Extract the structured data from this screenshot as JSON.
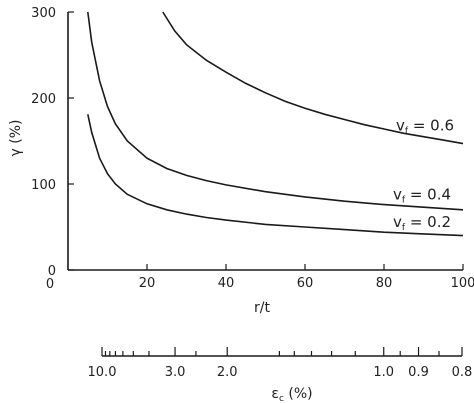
{
  "chart_data": {
    "type": "line",
    "title": "",
    "xlabel": "r/t",
    "ylabel": "γ (%)",
    "xlim": [
      0,
      100
    ],
    "ylim": [
      0,
      300
    ],
    "x_ticks": [
      20,
      40,
      60,
      80,
      100
    ],
    "y_ticks": [
      0,
      100,
      200,
      300
    ],
    "grid": false,
    "series": [
      {
        "name": "v_f = 0.6",
        "label_main": "v",
        "label_sub": "f",
        "label_value": " = 0.6",
        "x": [
          24,
          27,
          30,
          35,
          40,
          45,
          50,
          55,
          60,
          65,
          70,
          75,
          80,
          85,
          90,
          95,
          100
        ],
        "y": [
          300,
          278,
          262,
          244,
          230,
          217,
          206,
          196,
          188,
          181,
          175,
          169,
          164,
          159,
          155,
          151,
          147
        ]
      },
      {
        "name": "v_f = 0.4",
        "label_main": "v",
        "label_sub": "f",
        "label_value": " = 0.4",
        "x": [
          5,
          6,
          8,
          10,
          12,
          15,
          20,
          25,
          30,
          35,
          40,
          50,
          60,
          70,
          80,
          90,
          100
        ],
        "y": [
          300,
          265,
          220,
          190,
          170,
          150,
          130,
          118,
          110,
          104,
          99,
          91,
          85,
          80,
          76,
          73,
          70
        ]
      },
      {
        "name": "v_f = 0.2",
        "label_main": "v",
        "label_sub": "f",
        "label_value": " = 0.2",
        "x": [
          5,
          6,
          8,
          10,
          12,
          15,
          20,
          25,
          30,
          35,
          40,
          50,
          60,
          70,
          80,
          90,
          100
        ],
        "y": [
          181,
          160,
          130,
          112,
          100,
          88,
          77,
          70,
          65,
          61,
          58,
          53,
          50,
          47,
          44,
          42,
          40
        ]
      }
    ],
    "secondary_axis": {
      "label_main": "ε",
      "label_sub": "c",
      "label_value": " (%)",
      "tick_labels": [
        "10.0",
        "3.0",
        "2.0",
        "1.0",
        "0.9",
        "0.8"
      ],
      "tick_values": [
        10.0,
        3.0,
        2.0,
        1.0,
        0.9,
        0.8
      ]
    }
  }
}
